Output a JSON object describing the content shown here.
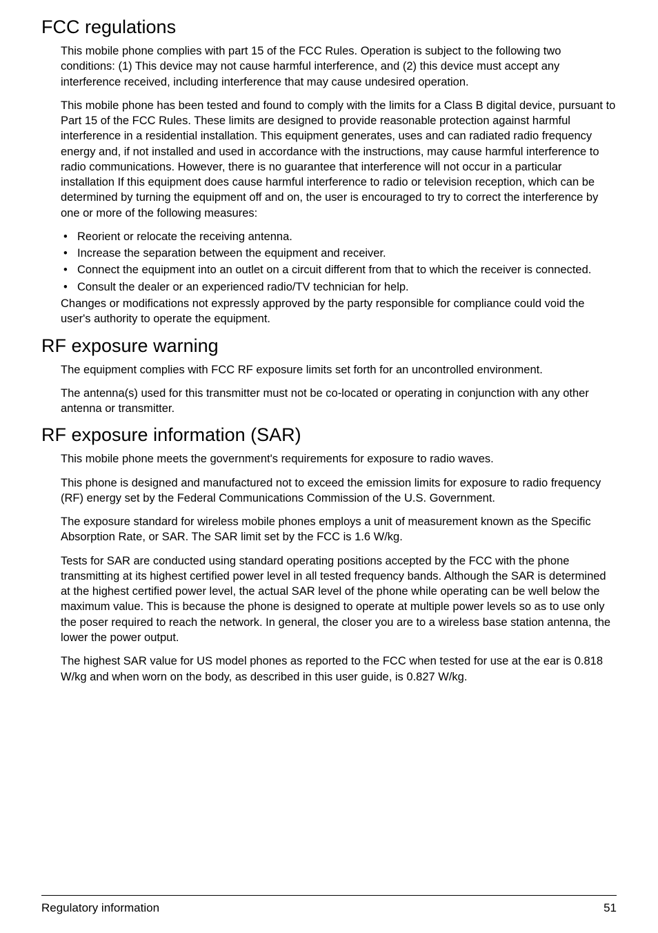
{
  "sections": {
    "fcc": {
      "title": "FCC regulations",
      "p1": "This mobile phone complies with part 15 of the FCC Rules. Operation is subject to the following two conditions: (1) This device may not cause harmful interference, and (2) this device must accept any interference received, including interference that may cause undesired operation.",
      "p2": "This mobile phone has been tested and found to comply with the limits for a Class B digital device, pursuant to Part 15 of the FCC Rules. These limits are designed to provide reasonable protection against harmful interference in a residential installation. This equipment generates, uses and can radiated radio frequency energy and, if not installed and used in accordance with the instructions, may cause harmful interference to radio communications. However, there is no guarantee that interference will not occur in a particular installation If this equipment does cause harmful interference to radio or television reception, which can be determined by turning the equipment off and on, the user is encouraged to try to correct the interference by one or more of the following measures:",
      "li1": "Reorient or relocate the receiving antenna.",
      "li2": "Increase the separation between the equipment and receiver.",
      "li3": "Connect the equipment into an outlet on a circuit different from that to which the receiver is connected.",
      "li4": "Consult the dealer or an experienced radio/TV technician for help.",
      "p3": "Changes or modifications not expressly approved by the party responsible for compliance could void the user's authority to operate the equipment."
    },
    "rfwarn": {
      "title": "RF exposure warning",
      "p1": "The equipment complies with FCC RF exposure limits set forth for an uncontrolled environment.",
      "p2": "The antenna(s) used for this transmitter must not be co-located or operating in conjunction with any other antenna or transmitter."
    },
    "sar": {
      "title": "RF exposure information (SAR)",
      "p1": "This mobile phone meets the government's requirements for exposure to radio waves.",
      "p2": "This phone is designed and manufactured not to exceed the emission limits for exposure to radio frequency (RF) energy set by the Federal Communications Commission of the U.S. Government.",
      "p3": "The exposure standard for wireless mobile phones employs a unit of measurement known as the Specific Absorption Rate, or SAR. The SAR limit set by the FCC is 1.6 W/kg.",
      "p4": "Tests for SAR are conducted using standard operating positions accepted by the FCC with the phone transmitting at its highest certified power level in all tested frequency bands. Although the SAR is determined at the highest certified power level, the actual SAR level of the phone while operating can be well below the maximum value. This is because the phone is designed to operate at multiple power levels so as to use only the poser required to reach the network. In general, the closer you are to a wireless base station antenna, the lower the power output.",
      "p5": "The highest SAR value for US  model phones as reported to the FCC when tested for use at the ear is 0.818 W/kg and when worn on the body, as described in this user guide, is 0.827 W/kg."
    }
  },
  "footer": {
    "label": "Regulatory information",
    "page": "51"
  }
}
